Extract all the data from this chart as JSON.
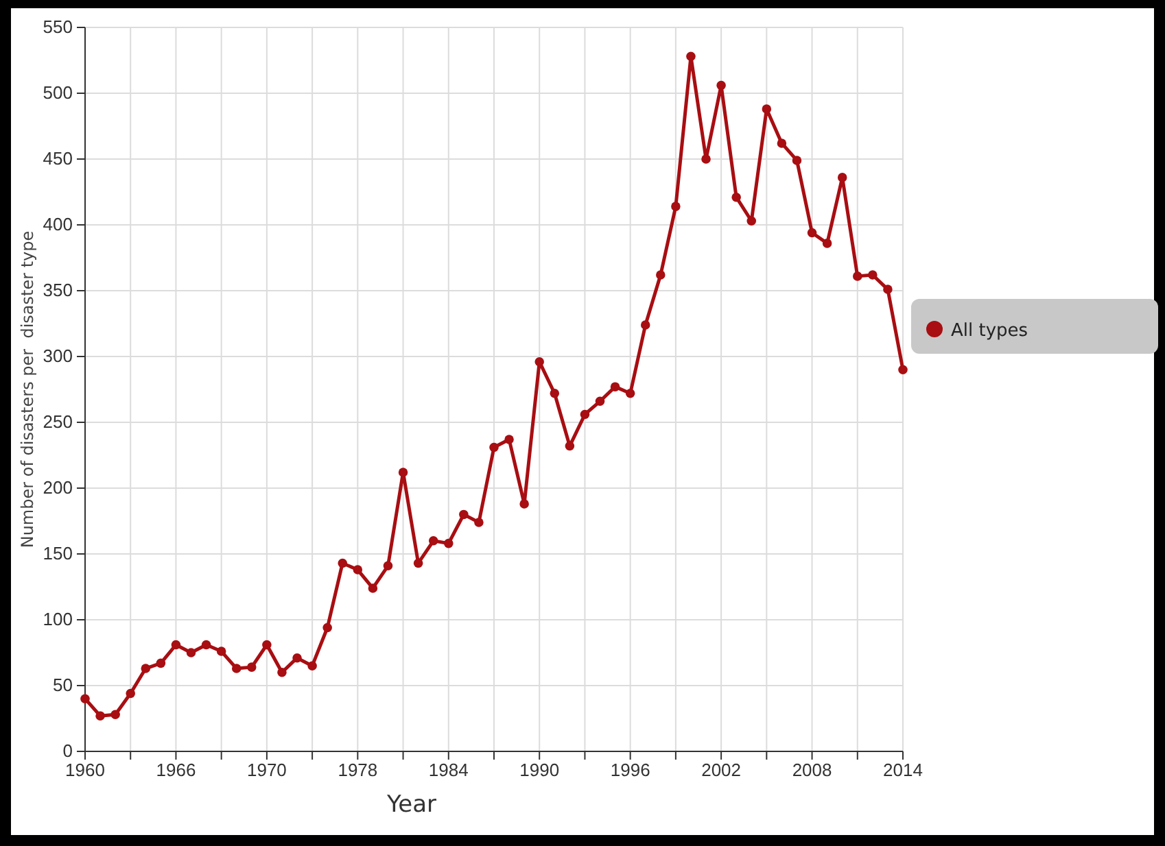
{
  "chart_data": {
    "type": "line",
    "xlabel": "Year",
    "ylabel": "Number of disasters per  disaster type",
    "categories": [
      "1960",
      null,
      null,
      null,
      null,
      null,
      "1966",
      null,
      null,
      null,
      null,
      null,
      "1970",
      null,
      null,
      null,
      null,
      null,
      "1978",
      null,
      null,
      null,
      null,
      null,
      "1984",
      null,
      null,
      null,
      null,
      null,
      "1990",
      null,
      null,
      null,
      null,
      null,
      "1996",
      null,
      null,
      null,
      null,
      null,
      "2002",
      null,
      null,
      null,
      null,
      null,
      "2008",
      null,
      null,
      null,
      null,
      null,
      "2014"
    ],
    "series": [
      {
        "name": "All types",
        "color": "#a80e12",
        "values": [
          40,
          27,
          28,
          44,
          63,
          67,
          81,
          75,
          81,
          76,
          63,
          64,
          81,
          60,
          71,
          65,
          94,
          143,
          138,
          124,
          141,
          212,
          143,
          160,
          158,
          180,
          174,
          231,
          237,
          188,
          296,
          272,
          232,
          256,
          266,
          277,
          272,
          324,
          362,
          414,
          528,
          450,
          506,
          421,
          403,
          488,
          462,
          449,
          394,
          386,
          436,
          361,
          362,
          351,
          290
        ]
      }
    ],
    "ylim": [
      0,
      550
    ],
    "yticks": [
      0,
      50,
      100,
      150,
      200,
      250,
      300,
      350,
      400,
      450,
      500,
      550
    ],
    "grid": true,
    "legend": "right",
    "marker": "circle",
    "line_style": "solid"
  }
}
